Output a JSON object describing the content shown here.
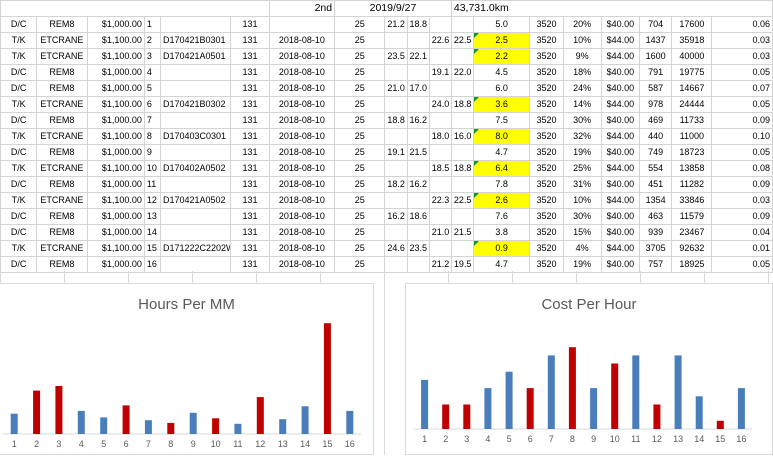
{
  "header": {
    "round": "2nd",
    "date": "2019/9/27",
    "distance": "43,731.0km"
  },
  "rows": [
    {
      "type": "D/C",
      "model": "REM8",
      "price": "$1,000.00",
      "no": "1",
      "code": "",
      "m": "131",
      "date": "",
      "v25": "25",
      "a": "21.2",
      "b": "18.8",
      "c": "",
      "d": "",
      "hrs": "5.0",
      "n3520": "3520",
      "pct": "20%",
      "rate": "$40.00",
      "e": "704",
      "f": "17600",
      "g": "0.06",
      "hl": false
    },
    {
      "type": "T/K",
      "model": "ETCRANE",
      "price": "$1,100.00",
      "no": "2",
      "code": "D170421B0301",
      "m": "131",
      "date": "2018-08-10",
      "v25": "25",
      "a": "",
      "b": "",
      "c": "22.6",
      "d": "22.5",
      "hrs": "2.5",
      "n3520": "3520",
      "pct": "10%",
      "rate": "$44.00",
      "e": "1437",
      "f": "35918",
      "g": "0.03",
      "hl": true
    },
    {
      "type": "T/K",
      "model": "ETCRANE",
      "price": "$1,100.00",
      "no": "3",
      "code": "D170421A0501",
      "m": "131",
      "date": "2018-08-10",
      "v25": "25",
      "a": "23.5",
      "b": "22.1",
      "c": "",
      "d": "",
      "hrs": "2.2",
      "n3520": "3520",
      "pct": "9%",
      "rate": "$44.00",
      "e": "1600",
      "f": "40000",
      "g": "0.03",
      "hl": true
    },
    {
      "type": "D/C",
      "model": "REM8",
      "price": "$1,000.00",
      "no": "4",
      "code": "",
      "m": "131",
      "date": "2018-08-10",
      "v25": "25",
      "a": "",
      "b": "",
      "c": "19.1",
      "d": "22.0",
      "hrs": "4.5",
      "n3520": "3520",
      "pct": "18%",
      "rate": "$40.00",
      "e": "791",
      "f": "19775",
      "g": "0.05",
      "hl": false
    },
    {
      "type": "D/C",
      "model": "REM8",
      "price": "$1,000.00",
      "no": "5",
      "code": "",
      "m": "131",
      "date": "2018-08-10",
      "v25": "25",
      "a": "21.0",
      "b": "17.0",
      "c": "",
      "d": "",
      "hrs": "6.0",
      "n3520": "3520",
      "pct": "24%",
      "rate": "$40.00",
      "e": "587",
      "f": "14667",
      "g": "0.07",
      "hl": false
    },
    {
      "type": "T/K",
      "model": "ETCRANE",
      "price": "$1,100.00",
      "no": "6",
      "code": "D170421B0302",
      "m": "131",
      "date": "2018-08-10",
      "v25": "25",
      "a": "",
      "b": "",
      "c": "24.0",
      "d": "18.8",
      "hrs": "3.6",
      "n3520": "3520",
      "pct": "14%",
      "rate": "$44.00",
      "e": "978",
      "f": "24444",
      "g": "0.05",
      "hl": true
    },
    {
      "type": "D/C",
      "model": "REM8",
      "price": "$1,000.00",
      "no": "7",
      "code": "",
      "m": "131",
      "date": "2018-08-10",
      "v25": "25",
      "a": "18.8",
      "b": "16.2",
      "c": "",
      "d": "",
      "hrs": "7.5",
      "n3520": "3520",
      "pct": "30%",
      "rate": "$40.00",
      "e": "469",
      "f": "11733",
      "g": "0.09",
      "hl": false
    },
    {
      "type": "T/K",
      "model": "ETCRANE",
      "price": "$1,100.00",
      "no": "8",
      "code": "D170403C0301",
      "m": "131",
      "date": "2018-08-10",
      "v25": "25",
      "a": "",
      "b": "",
      "c": "18.0",
      "d": "16.0",
      "hrs": "8.0",
      "n3520": "3520",
      "pct": "32%",
      "rate": "$44.00",
      "e": "440",
      "f": "11000",
      "g": "0.10",
      "hl": true
    },
    {
      "type": "D/C",
      "model": "REM8",
      "price": "$1,000.00",
      "no": "9",
      "code": "",
      "m": "131",
      "date": "2018-08-10",
      "v25": "25",
      "a": "19.1",
      "b": "21.5",
      "c": "",
      "d": "",
      "hrs": "4.7",
      "n3520": "3520",
      "pct": "19%",
      "rate": "$40.00",
      "e": "749",
      "f": "18723",
      "g": "0.05",
      "hl": false
    },
    {
      "type": "T/K",
      "model": "ETCRANE",
      "price": "$1,100.00",
      "no": "10",
      "code": "D170402A0502",
      "m": "131",
      "date": "2018-08-10",
      "v25": "25",
      "a": "",
      "b": "",
      "c": "18.5",
      "d": "18.8",
      "hrs": "6.4",
      "n3520": "3520",
      "pct": "25%",
      "rate": "$44.00",
      "e": "554",
      "f": "13858",
      "g": "0.08",
      "hl": true
    },
    {
      "type": "D/C",
      "model": "REM8",
      "price": "$1,000.00",
      "no": "11",
      "code": "",
      "m": "131",
      "date": "2018-08-10",
      "v25": "25",
      "a": "18.2",
      "b": "16.2",
      "c": "",
      "d": "",
      "hrs": "7.8",
      "n3520": "3520",
      "pct": "31%",
      "rate": "$40.00",
      "e": "451",
      "f": "11282",
      "g": "0.09",
      "hl": false
    },
    {
      "type": "T/K",
      "model": "ETCRANE",
      "price": "$1,100.00",
      "no": "12",
      "code": "D170421A0502",
      "m": "131",
      "date": "2018-08-10",
      "v25": "25",
      "a": "",
      "b": "",
      "c": "22.3",
      "d": "22.5",
      "hrs": "2.6",
      "n3520": "3520",
      "pct": "10%",
      "rate": "$44.00",
      "e": "1354",
      "f": "33846",
      "g": "0.03",
      "hl": true
    },
    {
      "type": "D/C",
      "model": "REM8",
      "price": "$1,000.00",
      "no": "13",
      "code": "",
      "m": "131",
      "date": "2018-08-10",
      "v25": "25",
      "a": "16.2",
      "b": "18.6",
      "c": "",
      "d": "",
      "hrs": "7.6",
      "n3520": "3520",
      "pct": "30%",
      "rate": "$40.00",
      "e": "463",
      "f": "11579",
      "g": "0.09",
      "hl": false
    },
    {
      "type": "D/C",
      "model": "REM8",
      "price": "$1,000.00",
      "no": "14",
      "code": "",
      "m": "131",
      "date": "2018-08-10",
      "v25": "25",
      "a": "",
      "b": "",
      "c": "21.0",
      "d": "21.5",
      "hrs": "3.8",
      "n3520": "3520",
      "pct": "15%",
      "rate": "$40.00",
      "e": "939",
      "f": "23467",
      "g": "0.04",
      "hl": false
    },
    {
      "type": "T/K",
      "model": "ETCRANE",
      "price": "$1,100.00",
      "no": "15",
      "code": "D171222C2202W",
      "m": "131",
      "date": "2018-08-10",
      "v25": "25",
      "a": "24.6",
      "b": "23.5",
      "c": "",
      "d": "",
      "hrs": "0.9",
      "n3520": "3520",
      "pct": "4%",
      "rate": "$44.00",
      "e": "3705",
      "f": "92632",
      "g": "0.01",
      "hl": true
    },
    {
      "type": "D/C",
      "model": "REM8",
      "price": "$1,000.00",
      "no": "16",
      "code": "",
      "m": "131",
      "date": "2018-08-10",
      "v25": "25",
      "a": "",
      "b": "",
      "c": "21.2",
      "d": "19.5",
      "hrs": "4.7",
      "n3520": "3520",
      "pct": "19%",
      "rate": "$40.00",
      "e": "757",
      "f": "18925",
      "g": "0.05",
      "hl": false
    }
  ],
  "colors": {
    "blue": "#4a7ebb",
    "red": "#c00000",
    "axis": "#d9d9d9",
    "label": "#595959"
  },
  "chart_data": [
    {
      "type": "bar",
      "title": "Hours Per MM",
      "categories": [
        "1",
        "2",
        "3",
        "4",
        "5",
        "6",
        "7",
        "8",
        "9",
        "10",
        "11",
        "12",
        "13",
        "14",
        "15",
        "16"
      ],
      "values": [
        22,
        47,
        52,
        25,
        18,
        31,
        15,
        12,
        23,
        17,
        11,
        40,
        16,
        30,
        120,
        25
      ],
      "bar_colors": [
        "blue",
        "red",
        "red",
        "blue",
        "blue",
        "red",
        "blue",
        "red",
        "blue",
        "red",
        "blue",
        "red",
        "blue",
        "blue",
        "red",
        "blue"
      ],
      "ylim": [
        0,
        130
      ],
      "grid": false
    },
    {
      "type": "bar",
      "title": "Cost Per Hour",
      "categories": [
        "1",
        "2",
        "3",
        "4",
        "5",
        "6",
        "7",
        "8",
        "9",
        "10",
        "11",
        "12",
        "13",
        "14",
        "15",
        "16"
      ],
      "values": [
        704,
        1437,
        1600,
        791,
        587,
        978,
        469,
        440,
        749,
        554,
        451,
        1354,
        463,
        939,
        3705,
        757
      ],
      "plotted_values": [
        0.06,
        0.03,
        0.03,
        0.05,
        0.07,
        0.05,
        0.09,
        0.1,
        0.05,
        0.08,
        0.09,
        0.03,
        0.09,
        0.04,
        0.01,
        0.05
      ],
      "bar_colors": [
        "blue",
        "red",
        "red",
        "blue",
        "blue",
        "red",
        "blue",
        "red",
        "blue",
        "red",
        "blue",
        "red",
        "blue",
        "blue",
        "red",
        "blue"
      ],
      "ylim": [
        0,
        0.11
      ],
      "grid": false
    }
  ]
}
